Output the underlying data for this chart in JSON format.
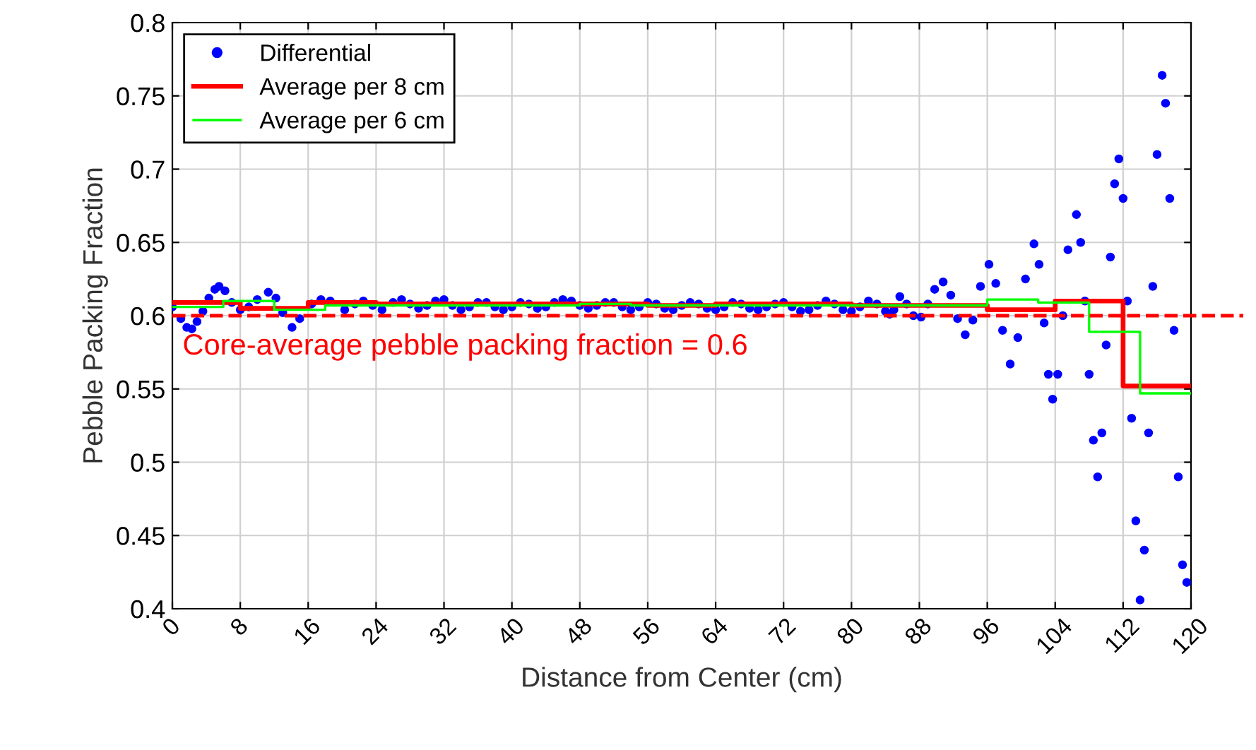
{
  "chart_data": {
    "type": "scatter",
    "xlabel": "Distance from Center (cm)",
    "ylabel": "Pebble Packing Fraction",
    "xlim": [
      0,
      120
    ],
    "ylim": [
      0.4,
      0.8
    ],
    "xticks": [
      0,
      8,
      16,
      24,
      32,
      40,
      48,
      56,
      64,
      72,
      80,
      88,
      96,
      104,
      112,
      120
    ],
    "yticks": [
      0.4,
      0.45,
      0.5,
      0.55,
      0.6,
      0.65,
      0.7,
      0.75,
      0.8
    ],
    "grid": true,
    "legend": "top left",
    "series": [
      {
        "name": "Differential",
        "marker": "circle",
        "color": "#0000ff",
        "x": [
          0,
          1,
          1.7,
          2.3,
          2.9,
          3.6,
          4.3,
          5,
          5.5,
          6.2,
          7,
          8,
          9,
          10,
          11.3,
          12.2,
          13,
          14.1,
          15,
          16.4,
          17.5,
          18.6,
          20.3,
          21.5,
          22.5,
          23.6,
          24.7,
          26,
          27,
          28,
          29,
          30,
          31,
          32,
          33,
          34,
          35,
          36,
          37,
          38,
          39,
          40,
          41,
          42,
          43,
          44,
          45,
          46,
          47,
          48,
          49,
          50,
          51,
          52,
          53,
          54,
          55,
          56,
          57,
          58,
          59,
          60,
          61,
          62,
          63,
          64,
          65,
          66,
          67,
          68,
          69,
          70,
          71,
          72,
          73,
          74,
          75,
          76,
          77,
          78,
          79,
          80,
          81,
          82,
          83,
          84,
          84.5,
          85,
          85.7,
          86.5,
          87.3,
          88.2,
          89,
          89.8,
          90.8,
          91.7,
          92.5,
          93.4,
          94.3,
          95.2,
          96.2,
          97,
          97.8,
          98.7,
          99.6,
          100.5,
          101.5,
          102.1,
          102.7,
          103.2,
          103.7,
          104.3,
          104.9,
          105.5,
          106.5,
          107,
          107.5,
          108,
          108.5,
          109,
          109.5,
          110,
          110.5,
          111,
          111.5,
          112,
          112.5,
          113,
          113.5,
          114,
          114.5,
          115,
          115.5,
          116,
          116.6,
          117,
          117.5,
          118,
          118.5,
          119,
          119.5
        ],
        "values": [
          0.606,
          0.598,
          0.592,
          0.591,
          0.596,
          0.603,
          0.612,
          0.618,
          0.62,
          0.617,
          0.609,
          0.604,
          0.606,
          0.611,
          0.616,
          0.612,
          0.602,
          0.592,
          0.598,
          0.608,
          0.611,
          0.61,
          0.604,
          0.608,
          0.61,
          0.607,
          0.604,
          0.609,
          0.611,
          0.608,
          0.605,
          0.607,
          0.61,
          0.611,
          0.607,
          0.604,
          0.606,
          0.609,
          0.609,
          0.606,
          0.604,
          0.606,
          0.609,
          0.608,
          0.605,
          0.606,
          0.609,
          0.611,
          0.61,
          0.607,
          0.605,
          0.607,
          0.609,
          0.609,
          0.606,
          0.604,
          0.606,
          0.609,
          0.608,
          0.605,
          0.604,
          0.607,
          0.609,
          0.608,
          0.605,
          0.604,
          0.606,
          0.609,
          0.608,
          0.605,
          0.604,
          0.606,
          0.608,
          0.609,
          0.606,
          0.603,
          0.604,
          0.607,
          0.61,
          0.608,
          0.604,
          0.603,
          0.606,
          0.61,
          0.608,
          0.603,
          0.601,
          0.604,
          0.613,
          0.608,
          0.6,
          0.599,
          0.608,
          0.618,
          0.623,
          0.614,
          0.598,
          0.587,
          0.597,
          0.62,
          0.635,
          0.622,
          0.59,
          0.567,
          0.585,
          0.625,
          0.649,
          0.635,
          0.595,
          0.56,
          0.543,
          0.56,
          0.6,
          0.645,
          0.669,
          0.65,
          0.61,
          0.56,
          0.515,
          0.49,
          0.52,
          0.58,
          0.64,
          0.69,
          0.707,
          0.68,
          0.61,
          0.53,
          0.46,
          0.406,
          0.44,
          0.52,
          0.62,
          0.71,
          0.764,
          0.745,
          0.68,
          0.59,
          0.49,
          0.43,
          0.418
        ]
      },
      {
        "name": "Average per 8 cm",
        "type": "step",
        "color": "#ff0000",
        "x": [
          0,
          8,
          16,
          24,
          32,
          40,
          48,
          56,
          64,
          72,
          80,
          88,
          96,
          104,
          112,
          120
        ],
        "values": [
          0.609,
          0.605,
          0.609,
          0.608,
          0.608,
          0.608,
          0.608,
          0.607,
          0.608,
          0.608,
          0.607,
          0.607,
          0.604,
          0.61,
          0.552,
          0.552
        ]
      },
      {
        "name": "Average per 6 cm",
        "type": "step",
        "color": "#00ff00",
        "x": [
          0,
          6,
          12,
          18,
          24,
          30,
          36,
          42,
          48,
          54,
          60,
          66,
          72,
          78,
          84,
          90,
          96,
          102,
          108,
          114,
          120
        ],
        "values": [
          0.606,
          0.61,
          0.604,
          0.607,
          0.607,
          0.607,
          0.607,
          0.607,
          0.608,
          0.607,
          0.607,
          0.607,
          0.607,
          0.607,
          0.607,
          0.607,
          0.611,
          0.609,
          0.589,
          0.547,
          0.547
        ]
      }
    ],
    "ref_lines": [
      {
        "axis": "y",
        "value": 0.6,
        "label": "Core-average pebble packing fraction = 0.6",
        "color": "#ff0000",
        "line_style": "dashed"
      }
    ]
  }
}
